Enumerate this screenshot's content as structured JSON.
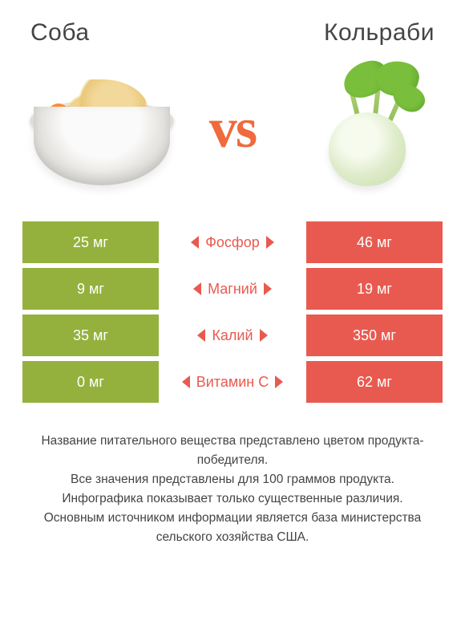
{
  "titles": {
    "left": "Соба",
    "right": "Кольраби"
  },
  "vs": "vs",
  "colors": {
    "left": "#94b13d",
    "right": "#e85a4f",
    "accent": "#ef6a3c",
    "text": "#444444"
  },
  "rows": [
    {
      "label": "Фосфор",
      "left": "25 мг",
      "right": "46 мг",
      "winner": "right"
    },
    {
      "label": "Магний",
      "left": "9 мг",
      "right": "19 мг",
      "winner": "right"
    },
    {
      "label": "Калий",
      "left": "35 мг",
      "right": "350 мг",
      "winner": "right"
    },
    {
      "label": "Витамин C",
      "left": "0 мг",
      "right": "62 мг",
      "winner": "right"
    }
  ],
  "notes": [
    "Название питательного вещества представлено цветом продукта-победителя.",
    "Все значения представлены для 100 граммов продукта.",
    "Инфографика показывает только существенные различия.",
    "Основным источником информации является база министерства сельского хозяйства США."
  ]
}
